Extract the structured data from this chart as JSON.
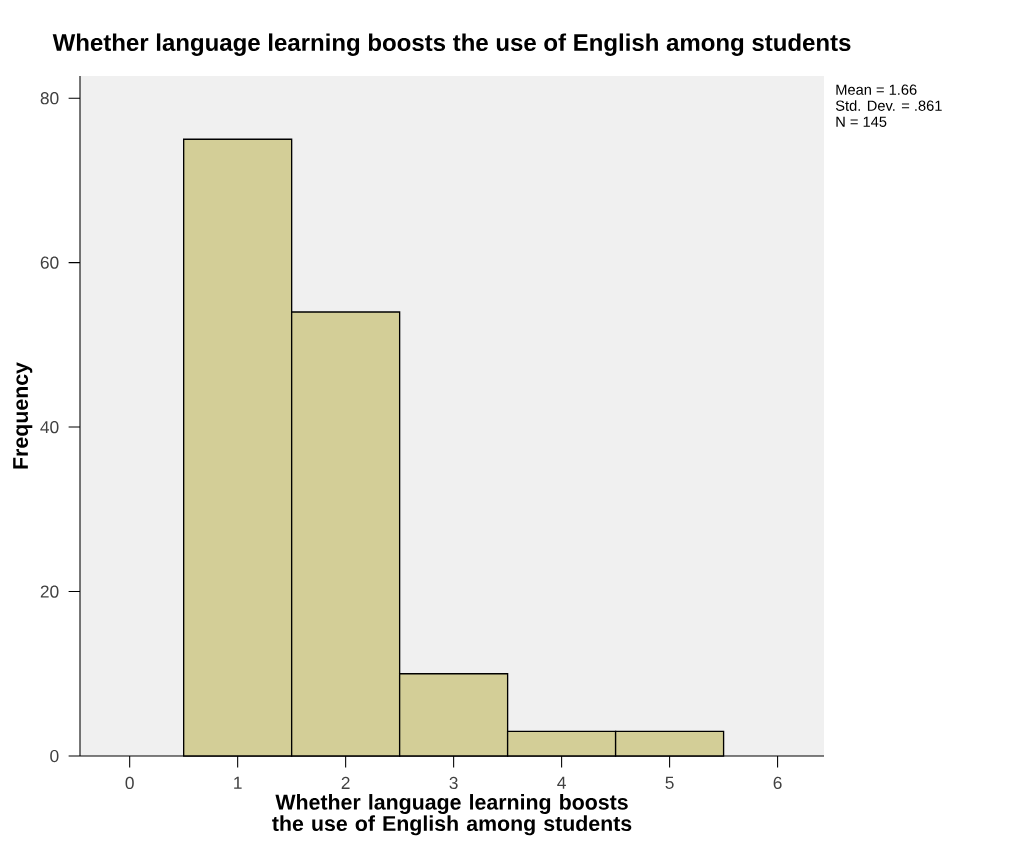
{
  "chart_data": {
    "type": "histogram",
    "title": "Whether language learning boosts the use of English among students",
    "xlabel": "Whether language learning boosts the use of English among students",
    "ylabel": "Frequency",
    "bins": [
      0.5,
      1.5,
      2.5,
      3.5,
      4.5,
      5.5
    ],
    "values": [
      75,
      54,
      10,
      3,
      3
    ],
    "color": "#d3ce97",
    "xlim": [
      -0.46,
      6.43
    ],
    "xticks": [
      0,
      1,
      2,
      3,
      4,
      5,
      6
    ],
    "ylim": [
      0,
      82.7
    ],
    "yticks": [
      0,
      20,
      40,
      60,
      80
    ],
    "grid": false,
    "annotations": [
      "Mean = 1.66",
      "Std. Dev. = .861",
      "N = 145"
    ]
  }
}
